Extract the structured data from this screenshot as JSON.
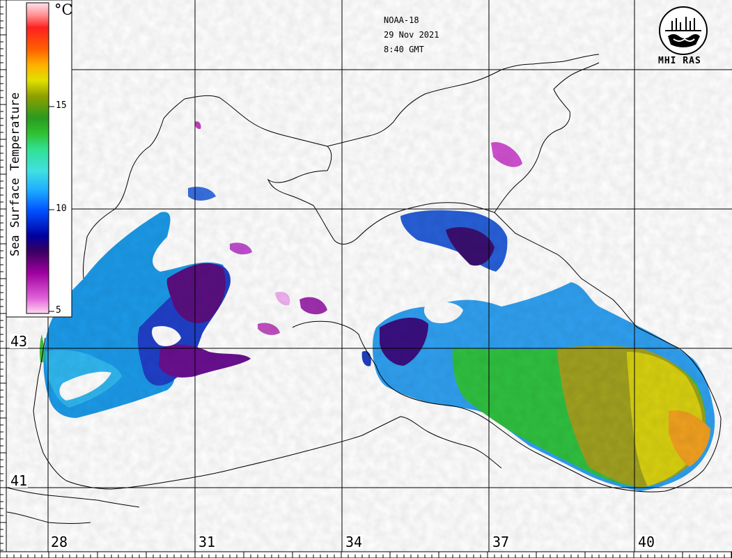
{
  "header": {
    "satellite": "NOAA-18",
    "date": "29 Nov 2021",
    "time": "8:40 GMT"
  },
  "logo": {
    "caption": "MHI RAS"
  },
  "legend": {
    "title": "Sea Surface Temperature",
    "unit": "°C",
    "ticks": [
      "15",
      "10",
      "5"
    ],
    "colors": [
      "#ffd8f0",
      "#e060d8",
      "#a000a0",
      "#3a0060",
      "#0000a0",
      "#0050ff",
      "#20b0ff",
      "#40e0e0",
      "#30e090",
      "#30c030",
      "#2a9a20",
      "#90a000",
      "#e0e000",
      "#ffb000",
      "#ff6000",
      "#ff2020",
      "#ff9090",
      "#ffe0f0"
    ]
  },
  "graticule": {
    "latitudes": [
      "43",
      "41"
    ],
    "longitudes": [
      "28",
      "31",
      "34",
      "37",
      "40"
    ]
  }
}
